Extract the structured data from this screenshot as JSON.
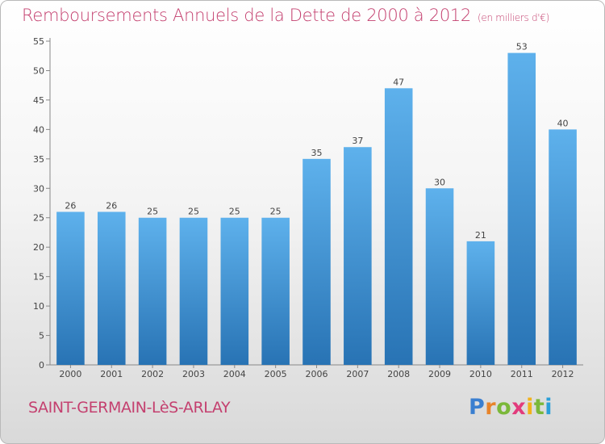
{
  "title": "Remboursements Annuels de la Dette de 2000 à 2012",
  "unit": "(en milliers d'€)",
  "commune": "SAINT-GERMAIN-LèS-ARLAY",
  "logo": "Proxiti",
  "colors": {
    "title": "#c4406f",
    "bar_top": "#5eb1ec",
    "bar_bottom": "#2873b4"
  },
  "chart_data": {
    "type": "bar",
    "categories": [
      "2000",
      "2001",
      "2002",
      "2003",
      "2004",
      "2005",
      "2006",
      "2007",
      "2008",
      "2009",
      "2010",
      "2011",
      "2012"
    ],
    "values": [
      26,
      26,
      25,
      25,
      25,
      25,
      35,
      37,
      47,
      30,
      21,
      53,
      40
    ],
    "ylim": [
      0,
      55
    ],
    "yticks": [
      0,
      5,
      10,
      15,
      20,
      25,
      30,
      35,
      40,
      45,
      50,
      55
    ],
    "grid": false,
    "data_labels": true
  }
}
